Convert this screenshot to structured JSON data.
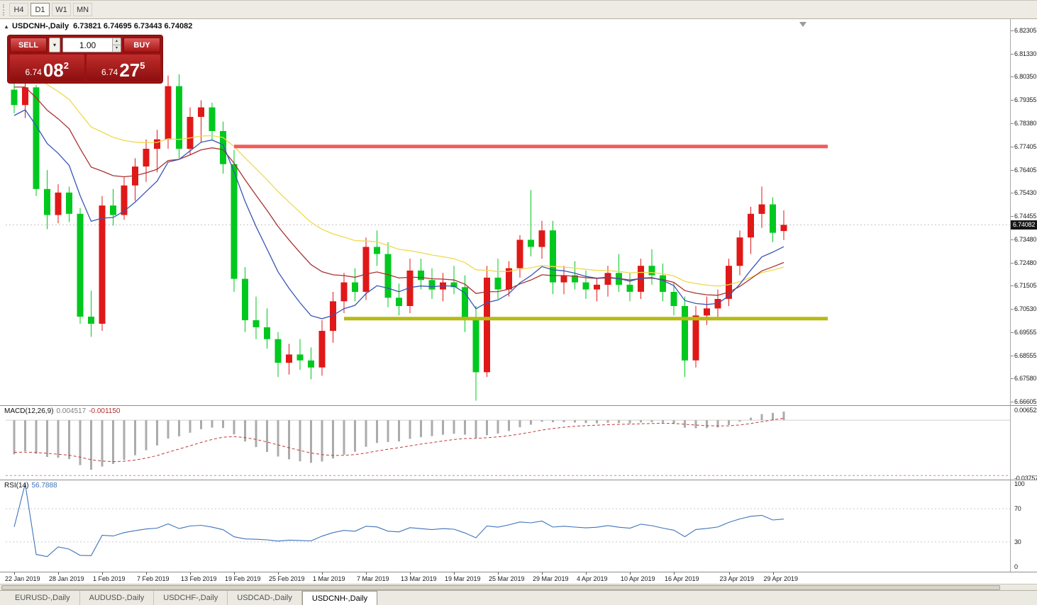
{
  "toolbar": {
    "timeframes": [
      "H4",
      "D1",
      "W1",
      "MN"
    ],
    "active": "D1"
  },
  "chart_header": {
    "icon": "▴",
    "title": "USDCNH-,Daily",
    "ohlc": "6.73821 6.74695 6.73443 6.74082"
  },
  "trade_panel": {
    "sell_label": "SELL",
    "buy_label": "BUY",
    "volume": "1.00",
    "bid_prefix": "6.74",
    "bid_big": "08",
    "bid_sup": "2",
    "ask_prefix": "6.74",
    "ask_big": "27",
    "ask_sup": "5"
  },
  "price_axis": {
    "labels": [
      "6.82305",
      "6.81330",
      "6.80350",
      "6.79355",
      "6.78380",
      "6.77405",
      "6.76405",
      "6.75430",
      "6.74455",
      "6.73480",
      "6.72480",
      "6.71505",
      "6.70530",
      "6.69555",
      "6.68555",
      "6.67580",
      "6.66605"
    ],
    "current_label": "6.74082"
  },
  "tabs": {
    "items": [
      "EURUSD-,Daily",
      "AUDUSD-,Daily",
      "USDCHF-,Daily",
      "USDCAD-,Daily",
      "USDCNH-,Daily"
    ],
    "active_index": 4
  },
  "chart_data": {
    "type": "candlestick",
    "symbol": "USDCNH",
    "timeframe": "Daily",
    "ohlc_display": {
      "open": "6.73821",
      "high": "6.74695",
      "low": "6.73443",
      "close": "6.74082"
    },
    "current_price": 6.74082,
    "y_axis": {
      "max": 6.82784,
      "min": 6.66455
    },
    "colors": {
      "bull": "#E01818",
      "bear": "#00C81E"
    },
    "candles": [
      [
        "22 Jan 2019",
        6.798,
        6.803,
        6.788,
        6.7915
      ],
      [
        "23 Jan 2019",
        6.7915,
        6.801,
        6.786,
        6.799
      ],
      [
        "24 Jan 2019",
        6.799,
        6.8,
        6.753,
        6.756
      ],
      [
        "25 Jan 2019",
        6.756,
        6.764,
        6.739,
        6.745
      ],
      [
        "28 Jan 2019",
        6.745,
        6.758,
        6.7415,
        6.7545
      ],
      [
        "29 Jan 2019",
        6.7545,
        6.757,
        6.742,
        6.7455
      ],
      [
        "30 Jan 2019",
        6.7455,
        6.748,
        6.699,
        6.702
      ],
      [
        "31 Jan 2019",
        6.702,
        6.713,
        6.6935,
        6.699
      ],
      [
        "1 Feb 2019",
        6.699,
        6.753,
        6.696,
        6.749
      ],
      [
        "4 Feb 2019",
        6.749,
        6.756,
        6.7405,
        6.745
      ],
      [
        "5 Feb 2019",
        6.745,
        6.761,
        6.743,
        6.7575
      ],
      [
        "6 Feb 2019",
        6.7575,
        6.769,
        6.751,
        6.7655
      ],
      [
        "7 Feb 2019",
        6.7655,
        6.777,
        6.759,
        6.773
      ],
      [
        "8 Feb 2019",
        6.773,
        6.781,
        6.763,
        6.777
      ],
      [
        "11 Feb 2019",
        6.777,
        6.804,
        6.773,
        6.7995
      ],
      [
        "12 Feb 2019",
        6.7995,
        6.8045,
        6.769,
        6.773
      ],
      [
        "13 Feb 2019",
        6.773,
        6.7905,
        6.7705,
        6.7865
      ],
      [
        "14 Feb 2019",
        6.7865,
        6.7935,
        6.7755,
        6.7905
      ],
      [
        "15 Feb 2019",
        6.7905,
        6.7925,
        6.7765,
        6.7805
      ],
      [
        "18 Feb 2019",
        6.7805,
        6.7845,
        6.7625,
        6.7665
      ],
      [
        "19 Feb 2019",
        6.7665,
        6.7725,
        6.7125,
        6.718
      ],
      [
        "20 Feb 2019",
        6.718,
        6.723,
        6.6955,
        6.7005
      ],
      [
        "21 Feb 2019",
        6.7005,
        6.7105,
        6.6925,
        6.6975
      ],
      [
        "22 Feb 2019",
        6.6975,
        6.7055,
        6.6885,
        6.6925
      ],
      [
        "25 Feb 2019",
        6.6925,
        6.6955,
        6.6765,
        6.6825
      ],
      [
        "26 Feb 2019",
        6.6825,
        6.6905,
        6.6775,
        6.686
      ],
      [
        "27 Feb 2019",
        6.686,
        6.6925,
        6.6795,
        6.6835
      ],
      [
        "28 Feb 2019",
        6.6835,
        6.689,
        6.6755,
        6.6805
      ],
      [
        "1 Mar 2019",
        6.6805,
        6.7005,
        6.677,
        6.696
      ],
      [
        "4 Mar 2019",
        6.696,
        6.7125,
        6.691,
        6.7085
      ],
      [
        "5 Mar 2019",
        6.7085,
        6.7205,
        6.7035,
        6.7165
      ],
      [
        "6 Mar 2019",
        6.7165,
        6.7225,
        6.7085,
        6.7125
      ],
      [
        "7 Mar 2019",
        6.7125,
        6.7355,
        6.709,
        6.7315
      ],
      [
        "8 Mar 2019",
        6.7315,
        6.7385,
        6.7235,
        6.7285
      ],
      [
        "11 Mar 2019",
        6.7285,
        6.7335,
        6.706,
        6.71
      ],
      [
        "12 Mar 2019",
        6.71,
        6.716,
        6.7025,
        6.7065
      ],
      [
        "13 Mar 2019",
        6.7065,
        6.7265,
        6.7035,
        6.7215
      ],
      [
        "14 Mar 2019",
        6.7215,
        6.7265,
        6.7135,
        6.7175
      ],
      [
        "15 Mar 2019",
        6.7175,
        6.7225,
        6.7095,
        6.7135
      ],
      [
        "18 Mar 2019",
        6.7135,
        6.7205,
        6.7085,
        6.7165
      ],
      [
        "19 Mar 2019",
        6.7165,
        6.7235,
        6.7115,
        6.7145
      ],
      [
        "20 Mar 2019",
        6.7145,
        6.7195,
        6.6955,
        6.7005
      ],
      [
        "21 Mar 2019",
        6.7005,
        6.7065,
        6.6665,
        6.6785
      ],
      [
        "22 Mar 2019",
        6.6785,
        6.7235,
        6.6765,
        6.7185
      ],
      [
        "25 Mar 2019",
        6.7185,
        6.7265,
        6.7095,
        6.7135
      ],
      [
        "26 Mar 2019",
        6.7135,
        6.7255,
        6.7105,
        6.7225
      ],
      [
        "27 Mar 2019",
        6.7225,
        6.7365,
        6.7185,
        6.7345
      ],
      [
        "28 Mar 2019",
        6.7345,
        6.7555,
        6.7275,
        6.7315
      ],
      [
        "29 Mar 2019",
        6.7315,
        6.7425,
        6.7265,
        6.7385
      ],
      [
        "1 Apr 2019",
        6.7385,
        6.7425,
        6.7115,
        6.7165
      ],
      [
        "2 Apr 2019",
        6.7165,
        6.7235,
        6.7115,
        6.7195
      ],
      [
        "3 Apr 2019",
        6.7195,
        6.7255,
        6.7135,
        6.7165
      ],
      [
        "4 Apr 2019",
        6.7165,
        6.7215,
        6.7095,
        6.7135
      ],
      [
        "5 Apr 2019",
        6.7135,
        6.7185,
        6.7085,
        6.7155
      ],
      [
        "8 Apr 2019",
        6.7155,
        6.7235,
        6.7105,
        6.7205
      ],
      [
        "9 Apr 2019",
        6.7205,
        6.7285,
        6.7125,
        6.7155
      ],
      [
        "10 Apr 2019",
        6.7155,
        6.7205,
        6.7085,
        6.7125
      ],
      [
        "11 Apr 2019",
        6.7125,
        6.7265,
        6.7095,
        6.7235
      ],
      [
        "12 Apr 2019",
        6.7235,
        6.7305,
        6.7155,
        6.7195
      ],
      [
        "15 Apr 2019",
        6.7195,
        6.7245,
        6.7085,
        6.7125
      ],
      [
        "16 Apr 2019",
        6.7125,
        6.7165,
        6.7025,
        6.7065
      ],
      [
        "17 Apr 2019",
        6.7065,
        6.7105,
        6.6765,
        6.6835
      ],
      [
        "18 Apr 2019",
        6.6835,
        6.7065,
        6.6805,
        6.7025
      ],
      [
        "19 Apr 2019",
        6.7025,
        6.7105,
        6.6985,
        6.7055
      ],
      [
        "22 Apr 2019",
        6.7055,
        6.7135,
        6.7015,
        6.7095
      ],
      [
        "23 Apr 2019",
        6.7095,
        6.7265,
        6.7065,
        6.7235
      ],
      [
        "24 Apr 2019",
        6.7235,
        6.7385,
        6.7195,
        6.7355
      ],
      [
        "25 Apr 2019",
        6.7355,
        6.7485,
        6.7285,
        6.7455
      ],
      [
        "26 Apr 2019",
        6.7455,
        6.757,
        6.7395,
        6.7495
      ],
      [
        "29 Apr 2019",
        6.7495,
        6.7525,
        6.7335,
        6.7375
      ],
      [
        "30 Apr 2019",
        6.73821,
        6.74695,
        6.73443,
        6.74082
      ]
    ],
    "date_labels": [
      {
        "text": "22 Jan 2019",
        "bar": 0
      },
      {
        "text": "28 Jan 2019",
        "bar": 4
      },
      {
        "text": "1 Feb 2019",
        "bar": 8
      },
      {
        "text": "7 Feb 2019",
        "bar": 12
      },
      {
        "text": "13 Feb 2019",
        "bar": 16
      },
      {
        "text": "19 Feb 2019",
        "bar": 20
      },
      {
        "text": "25 Feb 2019",
        "bar": 24
      },
      {
        "text": "1 Mar 2019",
        "bar": 28
      },
      {
        "text": "7 Mar 2019",
        "bar": 32
      },
      {
        "text": "13 Mar 2019",
        "bar": 36
      },
      {
        "text": "19 Mar 2019",
        "bar": 40
      },
      {
        "text": "25 Mar 2019",
        "bar": 44
      },
      {
        "text": "29 Mar 2019",
        "bar": 48
      },
      {
        "text": "4 Apr 2019",
        "bar": 52
      },
      {
        "text": "10 Apr 2019",
        "bar": 56
      },
      {
        "text": "16 Apr 2019",
        "bar": 60
      },
      {
        "text": "23 Apr 2019",
        "bar": 65
      },
      {
        "text": "29 Apr 2019",
        "bar": 69
      }
    ],
    "hlines": [
      {
        "name": "resistance-line",
        "price": 6.774,
        "from_bar": 20,
        "to_bar": 74,
        "color": "#F25B5B",
        "width": 5
      },
      {
        "name": "support-line",
        "price": 6.7012,
        "from_bar": 30,
        "to_bar": 74,
        "color": "#B5BB12",
        "width": 5
      }
    ],
    "moving_averages": [
      {
        "period": 30,
        "color": "#EFD94B",
        "seed": 6.809
      },
      {
        "period": 18,
        "color": "#A83232",
        "seed": 6.8
      },
      {
        "period": 9,
        "color": "#3A55B4",
        "seed": 6.786
      }
    ],
    "macd": {
      "label": "MACD(12,26,9)",
      "value_main": "0.004517",
      "value_signal": "-0.001150",
      "fast": 12,
      "slow": 26,
      "signal_period": 9,
      "seed_fast": 6.795,
      "seed_slow": 6.818,
      "seed_signal": -0.02,
      "scale_max": 0.009,
      "scale_min": -0.03757,
      "scale_top_label": "0.006522",
      "scale_bottom_label": "-0.03757",
      "level": -0.035,
      "hist_color": "#ABABAB",
      "signal_color": "#C03A3A",
      "level_color": "#CC8A8A"
    },
    "rsi": {
      "label": "RSI(14)",
      "value": "56.7888",
      "period": 14,
      "color": "#3E74B9",
      "levels": [
        70,
        30
      ],
      "scale_labels": [
        {
          "text": "100",
          "v": 100
        },
        {
          "text": "70",
          "v": 70
        },
        {
          "text": "30",
          "v": 30
        },
        {
          "text": "0",
          "v": 0
        }
      ]
    }
  }
}
